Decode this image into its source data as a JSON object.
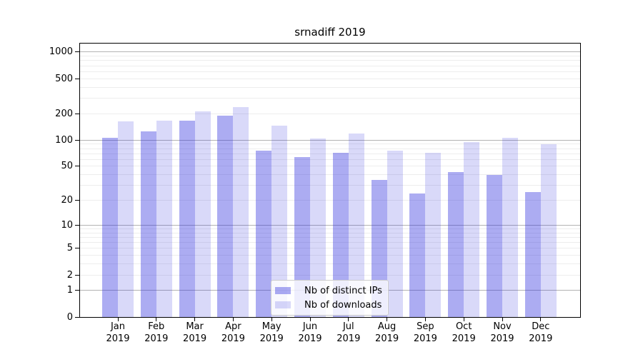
{
  "chart_data": {
    "type": "bar",
    "title": "srnadiff 2019",
    "categories": [
      {
        "month": "Jan",
        "year": "2019"
      },
      {
        "month": "Feb",
        "year": "2019"
      },
      {
        "month": "Mar",
        "year": "2019"
      },
      {
        "month": "Apr",
        "year": "2019"
      },
      {
        "month": "May",
        "year": "2019"
      },
      {
        "month": "Jun",
        "year": "2019"
      },
      {
        "month": "Jul",
        "year": "2019"
      },
      {
        "month": "Aug",
        "year": "2019"
      },
      {
        "month": "Sep",
        "year": "2019"
      },
      {
        "month": "Oct",
        "year": "2019"
      },
      {
        "month": "Nov",
        "year": "2019"
      },
      {
        "month": "Dec",
        "year": "2019"
      }
    ],
    "series": [
      {
        "name": "Nb of distinct IPs",
        "color": "rgba(47,47,223,0.40)",
        "values": [
          107,
          126,
          166,
          188,
          75,
          64,
          72,
          35,
          24,
          43,
          40,
          25
        ]
      },
      {
        "name": "Nb of downloads",
        "color": "rgba(47,47,223,0.18)",
        "values": [
          163,
          166,
          213,
          237,
          146,
          105,
          119,
          75,
          71,
          95,
          106,
          89
        ]
      }
    ],
    "xlabel": "",
    "ylabel": "",
    "yscale": "log10(1+y)",
    "ylim": [
      0,
      1250
    ],
    "yticks": [
      0,
      1,
      2,
      5,
      10,
      20,
      50,
      100,
      200,
      500,
      1000
    ],
    "grid": "horizontal",
    "grid_major_ticks": [
      1,
      10,
      100,
      1000
    ],
    "grid_minor_ticks": [
      2,
      3,
      4,
      5,
      6,
      7,
      8,
      9,
      20,
      30,
      40,
      50,
      60,
      70,
      80,
      90,
      200,
      300,
      400,
      500,
      600,
      700,
      800,
      900
    ],
    "legend_position": "lower center",
    "colors": {
      "grid_major": "#b3b3b3",
      "grid_minor": "#ededed",
      "axis": "#000000",
      "text": "#000000",
      "legend_border": "#cccccc",
      "legend_bg": "rgba(255,255,255,0.8)"
    }
  }
}
